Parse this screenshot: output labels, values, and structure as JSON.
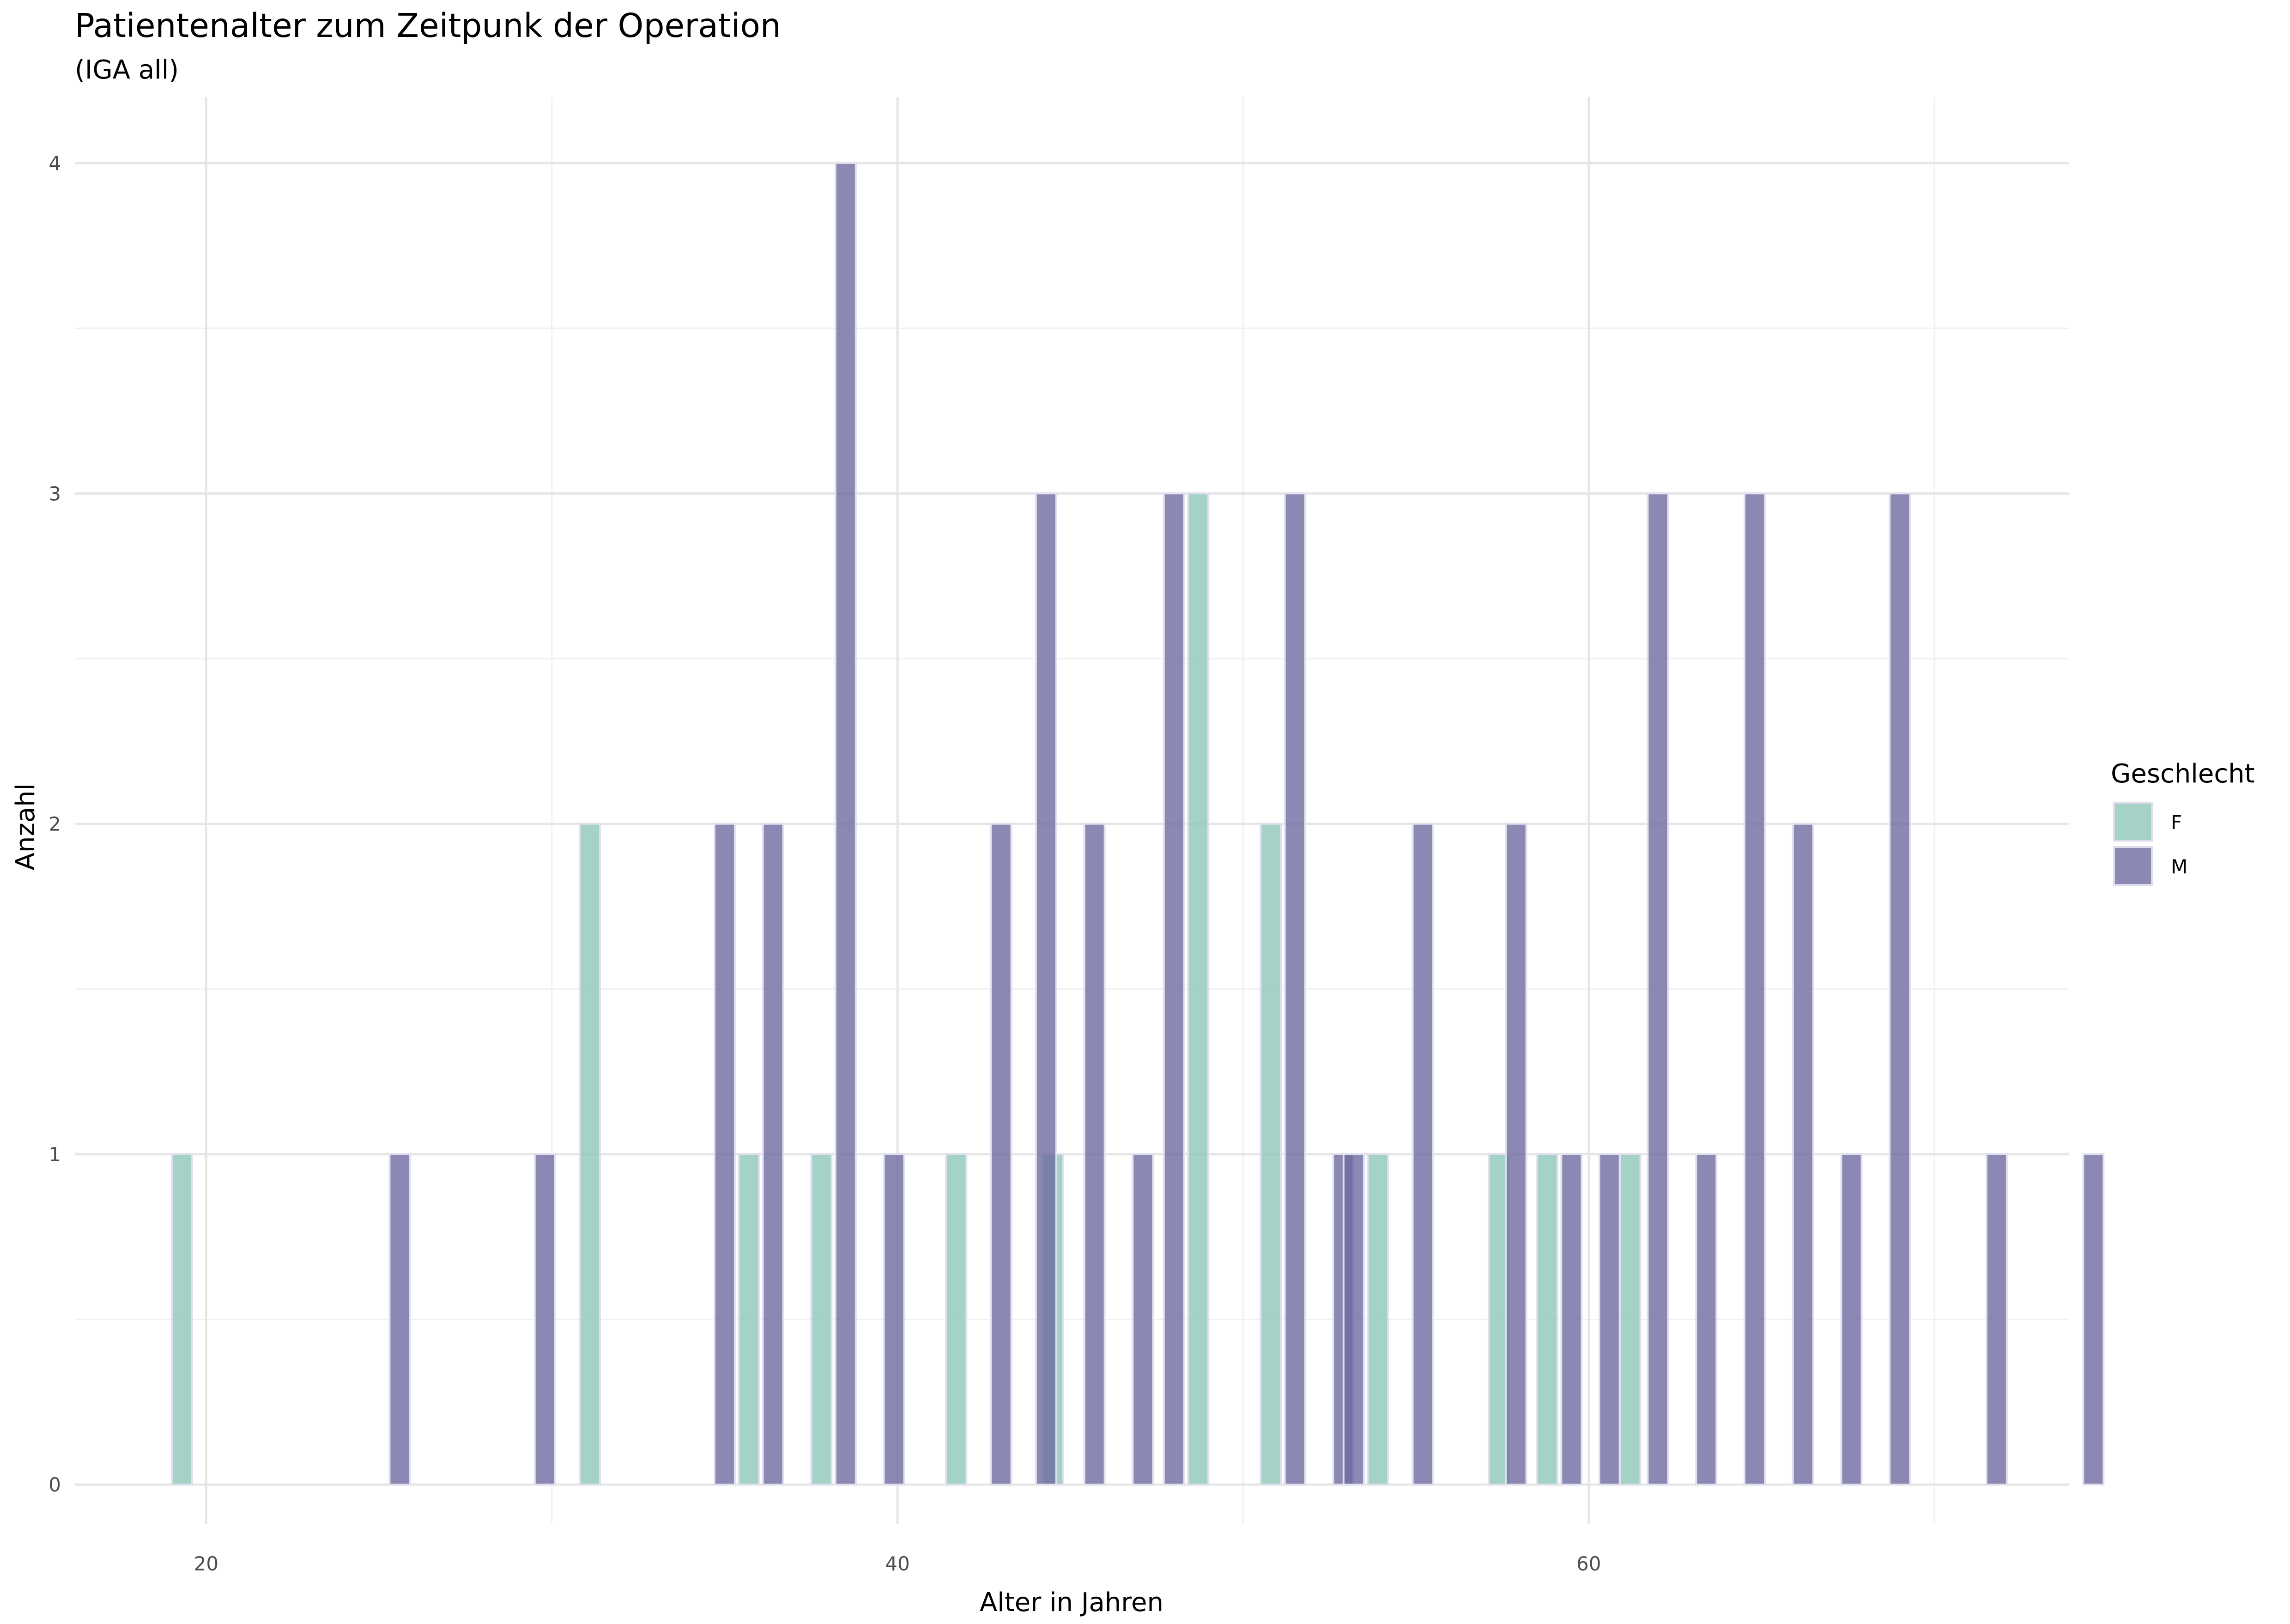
{
  "chart_data": {
    "type": "bar",
    "title": "Patientenalter zum Zeitpunk der Operation",
    "subtitle": "(IGA all)",
    "xlabel": "Alter in Jahren",
    "ylabel": "Anzahl",
    "xlim": [
      16.2,
      73.9
    ],
    "ylim": [
      -0.12,
      4.2
    ],
    "x_ticks": [
      20,
      40,
      60
    ],
    "y_ticks": [
      0,
      1,
      2,
      3,
      4
    ],
    "grid": true,
    "legend": {
      "title": "Geschlecht",
      "position": "right",
      "entries": [
        "F",
        "M"
      ]
    },
    "series": [
      {
        "name": "F",
        "color": "#8DC7B8",
        "x": [
          19.3,
          31.1,
          35.7,
          37.8,
          41.7,
          44.5,
          48.7,
          50.8,
          53.9,
          57.4,
          58.8,
          61.2
        ],
        "values": [
          1,
          2,
          1,
          1,
          1,
          1,
          3,
          2,
          1,
          1,
          1,
          1
        ]
      },
      {
        "name": "M",
        "color": "#6E6CA0",
        "x": [
          25.6,
          29.8,
          35.0,
          36.4,
          38.5,
          39.9,
          43.0,
          44.3,
          45.7,
          47.1,
          48.0,
          51.5,
          52.9,
          53.2,
          55.2,
          57.9,
          59.5,
          60.6,
          62.0,
          63.4,
          64.8,
          66.2,
          67.6,
          69.0,
          71.8,
          74.6
        ],
        "values": [
          1,
          1,
          2,
          2,
          4,
          1,
          2,
          3,
          2,
          1,
          3,
          3,
          1,
          1,
          2,
          2,
          1,
          1,
          3,
          1,
          3,
          2,
          1,
          3,
          1,
          1
        ]
      }
    ]
  }
}
